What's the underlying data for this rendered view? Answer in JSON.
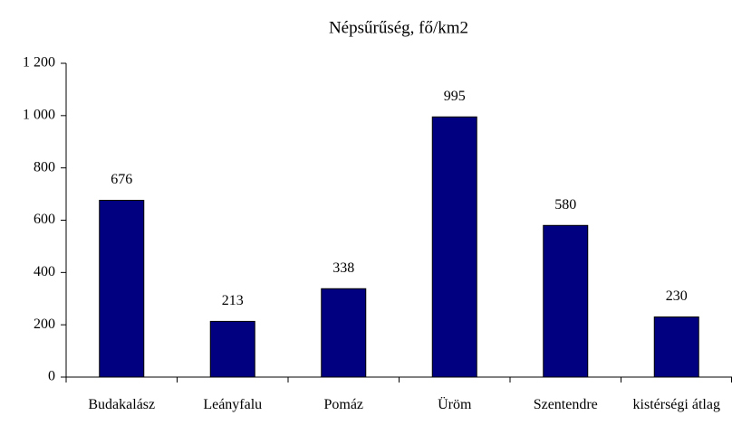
{
  "chart_data": {
    "type": "bar",
    "title": "Népsűrűség, fő/km2",
    "categories": [
      "Budakalász",
      "Leányfalu",
      "Pomáz",
      "Üröm",
      "Szentendre",
      "kistérségi átlag"
    ],
    "values": [
      676,
      213,
      338,
      995,
      580,
      230
    ],
    "color": "#000080",
    "ylim": [
      0,
      1200
    ],
    "yticks": [
      0,
      200,
      400,
      600,
      800,
      {
        "value": 1000,
        "label": "1 000"
      },
      {
        "value": 1200,
        "label": "1 200"
      }
    ],
    "grid": false
  }
}
